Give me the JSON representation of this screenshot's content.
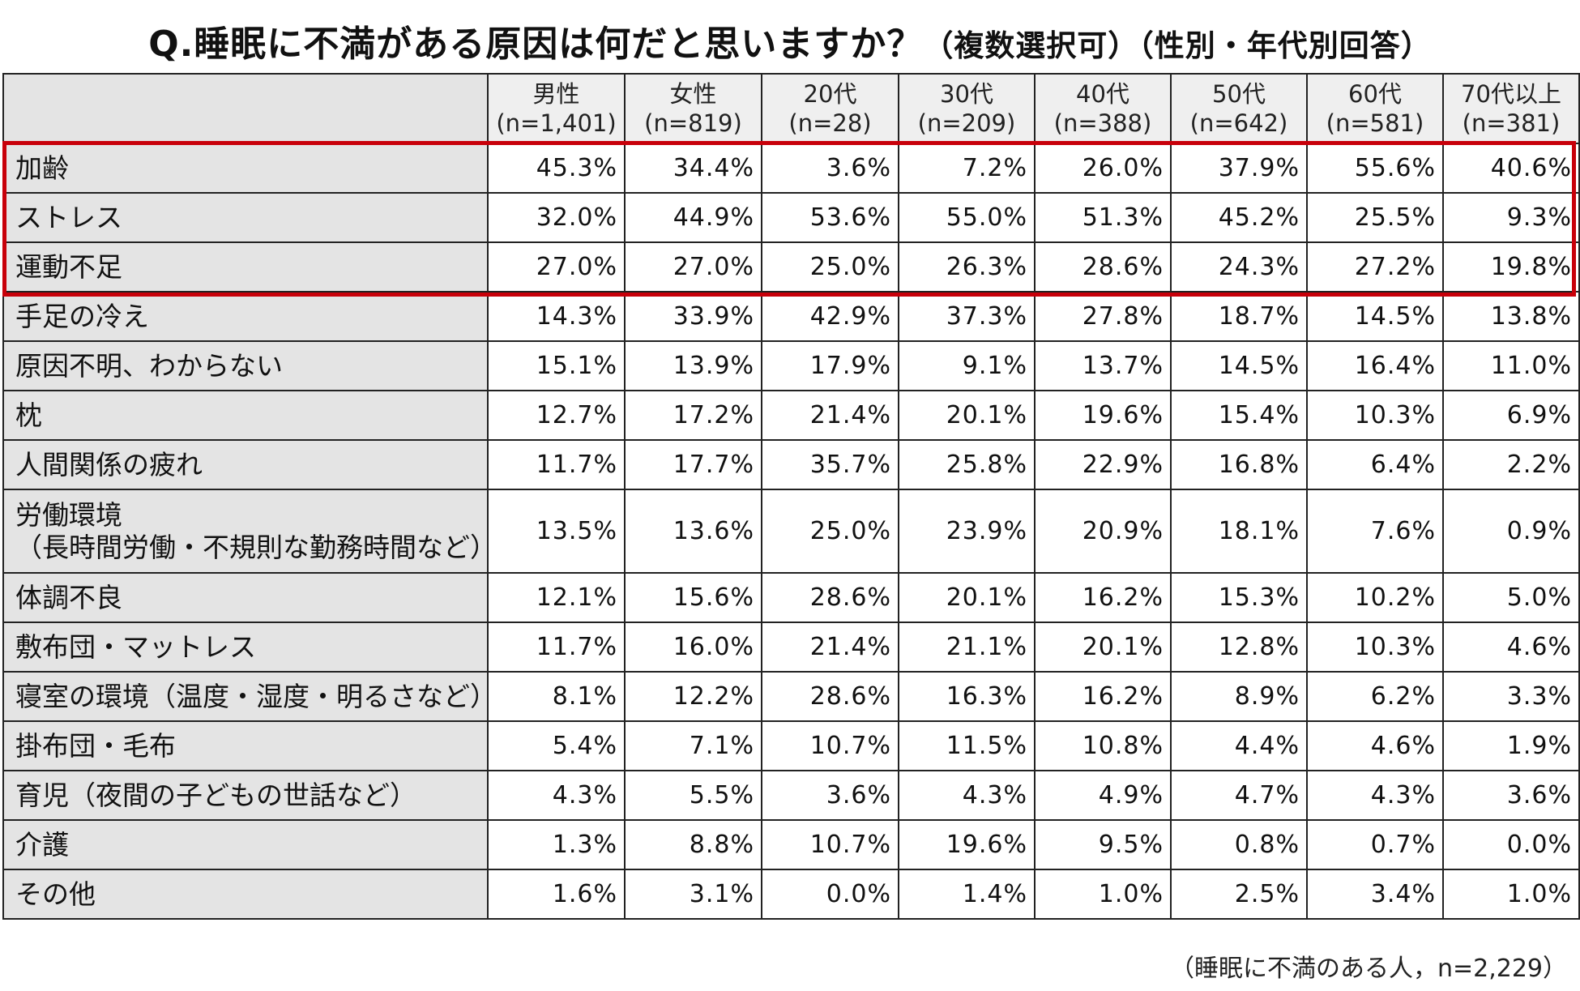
{
  "title": {
    "main": "Q.睡眠に不満がある原因は何だと思いますか？",
    "sub": "（複数選択可）（性別・年代別回答）"
  },
  "columns": [
    {
      "label": "男性",
      "n": "(n=1,401)"
    },
    {
      "label": "女性",
      "n": "(n=819)"
    },
    {
      "label": "20代",
      "n": "(n=28)"
    },
    {
      "label": "30代",
      "n": "(n=209)"
    },
    {
      "label": "40代",
      "n": "(n=388)"
    },
    {
      "label": "50代",
      "n": "(n=642)"
    },
    {
      "label": "60代",
      "n": "(n=581)"
    },
    {
      "label": "70代以上",
      "n": "(n=381)"
    }
  ],
  "rows": [
    {
      "label": "加齢",
      "values": [
        "45.3%",
        "34.4%",
        "3.6%",
        "7.2%",
        "26.0%",
        "37.9%",
        "55.6%",
        "40.6%"
      ]
    },
    {
      "label": "ストレス",
      "values": [
        "32.0%",
        "44.9%",
        "53.6%",
        "55.0%",
        "51.3%",
        "45.2%",
        "25.5%",
        "9.3%"
      ]
    },
    {
      "label": "運動不足",
      "values": [
        "27.0%",
        "27.0%",
        "25.0%",
        "26.3%",
        "28.6%",
        "24.3%",
        "27.2%",
        "19.8%"
      ]
    },
    {
      "label": "手足の冷え",
      "values": [
        "14.3%",
        "33.9%",
        "42.9%",
        "37.3%",
        "27.8%",
        "18.7%",
        "14.5%",
        "13.8%"
      ]
    },
    {
      "label": "原因不明、わからない",
      "values": [
        "15.1%",
        "13.9%",
        "17.9%",
        "9.1%",
        "13.7%",
        "14.5%",
        "16.4%",
        "11.0%"
      ]
    },
    {
      "label": "枕",
      "values": [
        "12.7%",
        "17.2%",
        "21.4%",
        "20.1%",
        "19.6%",
        "15.4%",
        "10.3%",
        "6.9%"
      ]
    },
    {
      "label": "人間関係の疲れ",
      "values": [
        "11.7%",
        "17.7%",
        "35.7%",
        "25.8%",
        "22.9%",
        "16.8%",
        "6.4%",
        "2.2%"
      ]
    },
    {
      "label": "労働環境",
      "label2": "（長時間労働・不規則な勤務時間など）",
      "values": [
        "13.5%",
        "13.6%",
        "25.0%",
        "23.9%",
        "20.9%",
        "18.1%",
        "7.6%",
        "0.9%"
      ]
    },
    {
      "label": "体調不良",
      "values": [
        "12.1%",
        "15.6%",
        "28.6%",
        "20.1%",
        "16.2%",
        "15.3%",
        "10.2%",
        "5.0%"
      ]
    },
    {
      "label": "敷布団・マットレス",
      "values": [
        "11.7%",
        "16.0%",
        "21.4%",
        "21.1%",
        "20.1%",
        "12.8%",
        "10.3%",
        "4.6%"
      ]
    },
    {
      "label": "寝室の環境（温度・湿度・明るさなど）",
      "values": [
        "8.1%",
        "12.2%",
        "28.6%",
        "16.3%",
        "16.2%",
        "8.9%",
        "6.2%",
        "3.3%"
      ]
    },
    {
      "label": "掛布団・毛布",
      "values": [
        "5.4%",
        "7.1%",
        "10.7%",
        "11.5%",
        "10.8%",
        "4.4%",
        "4.6%",
        "1.9%"
      ]
    },
    {
      "label": "育児（夜間の子どもの世話など）",
      "values": [
        "4.3%",
        "5.5%",
        "3.6%",
        "4.3%",
        "4.9%",
        "4.7%",
        "4.3%",
        "3.6%"
      ]
    },
    {
      "label": "介護",
      "values": [
        "1.3%",
        "8.8%",
        "10.7%",
        "19.6%",
        "9.5%",
        "0.8%",
        "0.7%",
        "0.0%"
      ]
    },
    {
      "label": "その他",
      "values": [
        "1.6%",
        "3.1%",
        "0.0%",
        "1.4%",
        "1.0%",
        "2.5%",
        "3.4%",
        "1.0%"
      ]
    }
  ],
  "highlight_color": "#c8000a",
  "footnote": "（睡眠に不満のある人，n=2,229）"
}
